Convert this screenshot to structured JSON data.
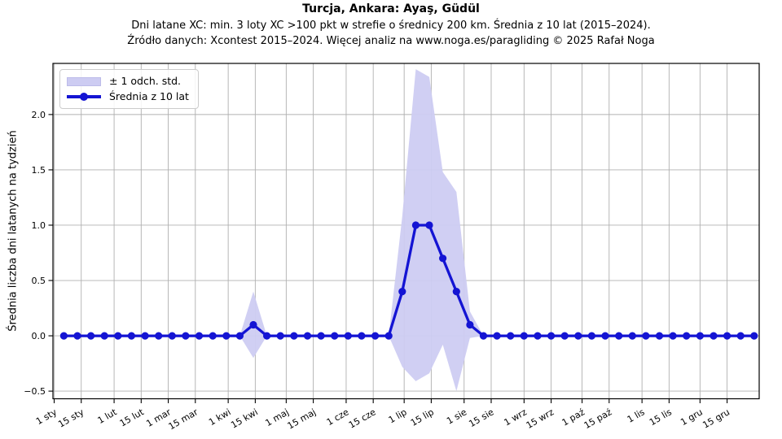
{
  "chart_data": {
    "type": "line",
    "title": "Turcja, Ankara: Ayaş, Güdül",
    "subtitle": "Dni latane XC: min. 3 loty XC >100 pkt w strefie o średnicy 200 km. Średnia z 10 lat (2015–2024).",
    "source": "Źródło danych: Xcontest 2015–2024. Więcej analiz na www.noga.es/paragliding © 2025 Rafał Noga",
    "ylabel": "Średnia liczba dni latanych na tydzień",
    "xlabel": "",
    "grid": true,
    "legend_position": "upper left",
    "legend": [
      "± 1 odch. std.",
      "Średnia z 10 lat"
    ],
    "x_ticks": [
      {
        "day": 0,
        "label": "1 sty"
      },
      {
        "day": 14,
        "label": "15 sty"
      },
      {
        "day": 31,
        "label": "1 lut"
      },
      {
        "day": 45,
        "label": "15 lut"
      },
      {
        "day": 59,
        "label": "1 mar"
      },
      {
        "day": 73,
        "label": "15 mar"
      },
      {
        "day": 90,
        "label": "1 kwi"
      },
      {
        "day": 104,
        "label": "15 kwi"
      },
      {
        "day": 120,
        "label": "1 maj"
      },
      {
        "day": 134,
        "label": "15 maj"
      },
      {
        "day": 151,
        "label": "1 cze"
      },
      {
        "day": 165,
        "label": "15 cze"
      },
      {
        "day": 181,
        "label": "1 lip"
      },
      {
        "day": 195,
        "label": "15 lip"
      },
      {
        "day": 212,
        "label": "1 sie"
      },
      {
        "day": 226,
        "label": "15 sie"
      },
      {
        "day": 243,
        "label": "1 wrz"
      },
      {
        "day": 257,
        "label": "15 wrz"
      },
      {
        "day": 273,
        "label": "1 paź"
      },
      {
        "day": 287,
        "label": "15 paź"
      },
      {
        "day": 304,
        "label": "1 lis"
      },
      {
        "day": 318,
        "label": "15 lis"
      },
      {
        "day": 334,
        "label": "1 gru"
      },
      {
        "day": 348,
        "label": "15 gru"
      }
    ],
    "y_ticks": [
      {
        "v": -0.5,
        "label": "−0.5"
      },
      {
        "v": 0.0,
        "label": "0.0"
      },
      {
        "v": 0.5,
        "label": "0.5"
      },
      {
        "v": 1.0,
        "label": "1.0"
      },
      {
        "v": 1.5,
        "label": "1.5"
      },
      {
        "v": 2.0,
        "label": "2.0"
      }
    ],
    "xlim_days": [
      -0.63,
      364.6
    ],
    "ylim": [
      -0.569,
      2.462
    ],
    "weeks_start_day_of_year": 5,
    "week_interval_days": 7,
    "series": [
      {
        "name": "Średnia z 10 lat",
        "role": "mean",
        "values": [
          0,
          0,
          0,
          0,
          0,
          0,
          0,
          0,
          0,
          0,
          0,
          0,
          0,
          0,
          0.1,
          0,
          0,
          0,
          0,
          0,
          0,
          0,
          0,
          0,
          0,
          0.4,
          1.0,
          1.0,
          0.7,
          0.4,
          0.1,
          0,
          0,
          0,
          0,
          0,
          0,
          0,
          0,
          0,
          0,
          0,
          0,
          0,
          0,
          0,
          0,
          0,
          0,
          0,
          0,
          0
        ]
      },
      {
        "name": "± 1 odch. std.",
        "role": "std_band",
        "values": [
          0,
          0,
          0,
          0,
          0,
          0,
          0,
          0,
          0,
          0,
          0,
          0,
          0,
          0,
          0.3,
          0,
          0,
          0,
          0,
          0,
          0,
          0,
          0,
          0,
          0,
          0.68,
          1.41,
          1.34,
          0.78,
          0.9,
          0.12,
          0,
          0,
          0,
          0,
          0,
          0,
          0,
          0,
          0,
          0,
          0,
          0,
          0,
          0,
          0,
          0,
          0,
          0,
          0,
          0,
          0
        ]
      }
    ],
    "colors": {
      "line": "#1414d3",
      "band": "#cdccf2",
      "grid": "#b0b0b0",
      "spine": "#000000",
      "text": "#000000"
    }
  }
}
